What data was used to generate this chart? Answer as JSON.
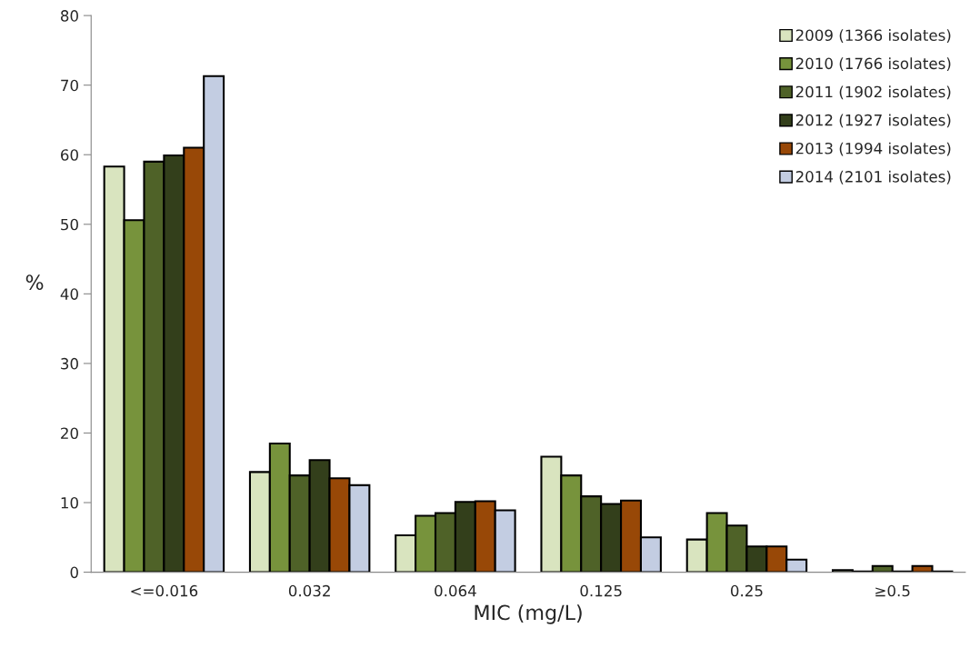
{
  "chart_data": {
    "type": "bar",
    "xlabel": "MIC (mg/L)",
    "ylabel": "%",
    "categories": [
      "<=0.016",
      "0.032",
      "0.064",
      "0.125",
      "0.25",
      "≥0.5"
    ],
    "series": [
      {
        "name": "2009 (1366 isolates)",
        "color": "#d9e4bf",
        "values": [
          58.3,
          14.4,
          5.3,
          16.6,
          4.7,
          0.3
        ]
      },
      {
        "name": "2010 (1766 isolates)",
        "color": "#77933c",
        "values": [
          50.6,
          18.5,
          8.1,
          13.9,
          8.5,
          0.1
        ]
      },
      {
        "name": "2011 (1902 isolates)",
        "color": "#4f6228",
        "values": [
          59.0,
          13.9,
          8.5,
          10.9,
          6.7,
          0.9
        ]
      },
      {
        "name": "2012 (1927 isolates)",
        "color": "#333f1b",
        "values": [
          59.9,
          16.1,
          10.1,
          9.8,
          3.7,
          0.1
        ]
      },
      {
        "name": "2013 (1994 isolates)",
        "color": "#984807",
        "values": [
          61.0,
          13.5,
          10.2,
          10.3,
          3.7,
          0.9
        ]
      },
      {
        "name": "2014 (2101 isolates)",
        "color": "#c3cde2",
        "values": [
          71.3,
          12.5,
          8.9,
          5.0,
          1.8,
          0.1
        ]
      }
    ],
    "ylim": [
      0,
      80
    ],
    "yticks": [
      0,
      10,
      20,
      30,
      40,
      50,
      60,
      70,
      80
    ],
    "grid": false,
    "legend": "top right"
  }
}
